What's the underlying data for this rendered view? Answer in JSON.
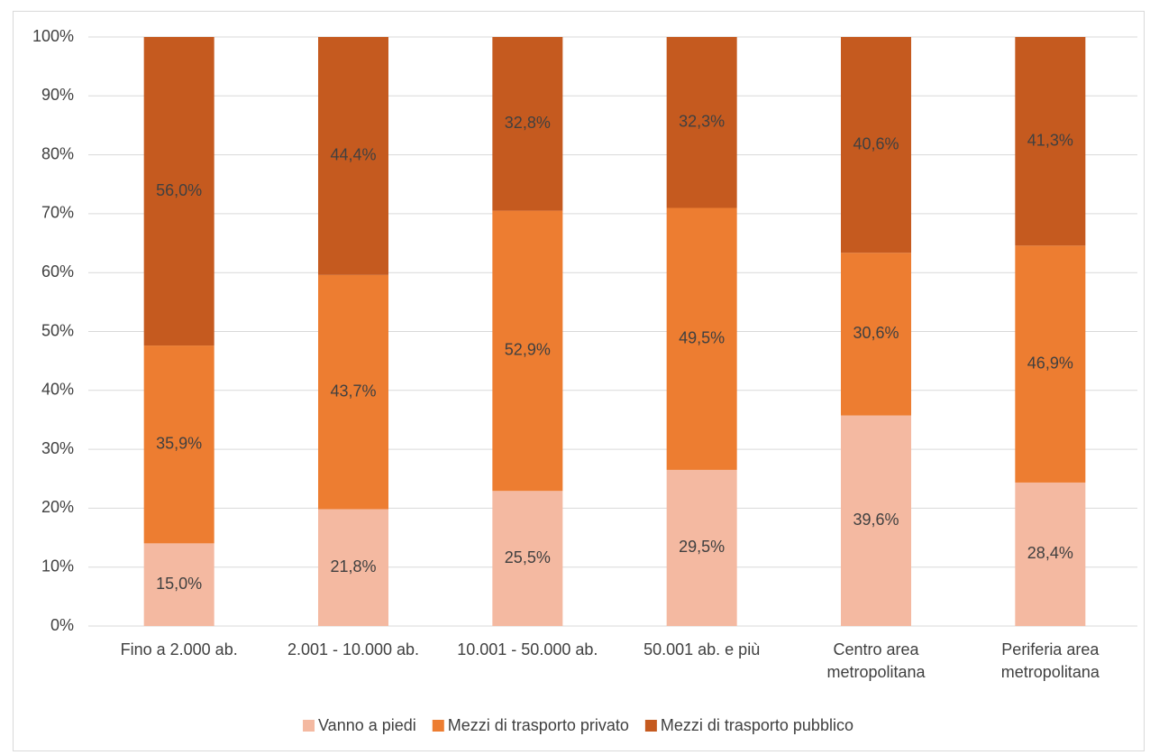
{
  "chart_data": {
    "type": "bar",
    "stacking": "percent",
    "categories": [
      "Fino a 2.000 ab.",
      "2.001 - 10.000 ab.",
      "10.001 - 50.000 ab.",
      "50.001 ab. e più",
      "Centro area\nmetropolitana",
      "Periferia area\nmetropolitana"
    ],
    "series": [
      {
        "name": "Vanno a piedi",
        "color": "#f4b9a1",
        "values": [
          15.0,
          21.8,
          25.5,
          29.5,
          39.6,
          28.4
        ],
        "value_labels": [
          "15,0%",
          "21,8%",
          "25,5%",
          "29,5%",
          "39,6%",
          "28,4%"
        ]
      },
      {
        "name": "Mezzi di trasporto privato",
        "color": "#ed7d31",
        "values": [
          35.9,
          43.7,
          52.9,
          49.5,
          30.6,
          46.9
        ],
        "value_labels": [
          "35,9%",
          "43,7%",
          "52,9%",
          "49,5%",
          "30,6%",
          "46,9%"
        ]
      },
      {
        "name": "Mezzi di trasporto pubblico",
        "color": "#c55a1f",
        "values": [
          56.0,
          44.4,
          32.8,
          32.3,
          40.6,
          41.3
        ],
        "value_labels": [
          "56,0%",
          "44,4%",
          "32,8%",
          "32,3%",
          "40,6%",
          "41,3%"
        ]
      }
    ],
    "ylim": [
      0,
      100
    ],
    "yticks": [
      {
        "value": 0,
        "label": "0%"
      },
      {
        "value": 10,
        "label": "10%"
      },
      {
        "value": 20,
        "label": "20%"
      },
      {
        "value": 30,
        "label": "30%"
      },
      {
        "value": 40,
        "label": "40%"
      },
      {
        "value": 50,
        "label": "50%"
      },
      {
        "value": 60,
        "label": "60%"
      },
      {
        "value": 70,
        "label": "70%"
      },
      {
        "value": 80,
        "label": "80%"
      },
      {
        "value": 90,
        "label": "90%"
      },
      {
        "value": 100,
        "label": "100%"
      }
    ],
    "grid": true,
    "legend": "bottom"
  }
}
